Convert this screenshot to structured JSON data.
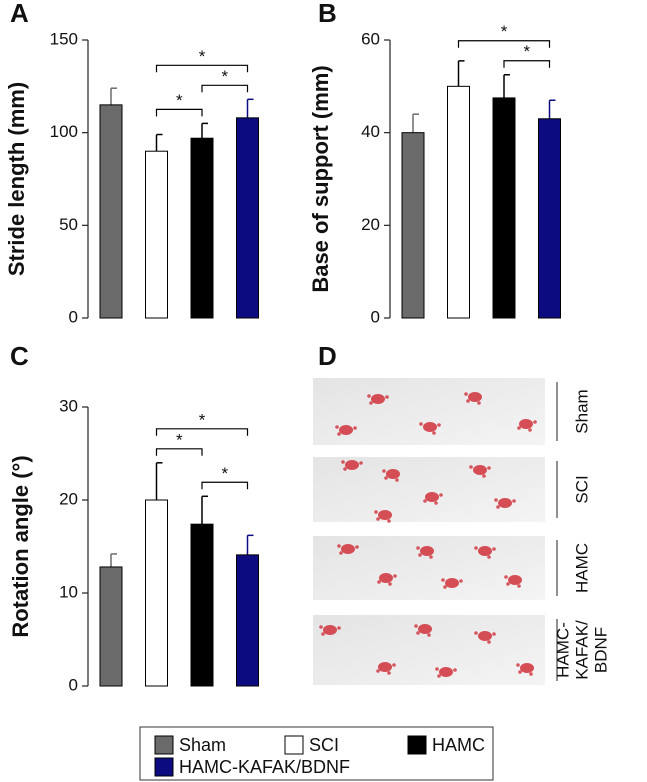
{
  "legend": [
    {
      "name": "Sham",
      "color": "#6b6b6b"
    },
    {
      "name": "SCI",
      "color": "#ffffff"
    },
    {
      "name": "HAMC",
      "color": "#000000"
    },
    {
      "name": "HAMC-KAFAK/BDNF",
      "color": "#0c0c80"
    }
  ],
  "chart_data": [
    {
      "type": "bar",
      "panel": "A",
      "ylabel": "Stride length (mm)",
      "values": [
        115,
        90,
        97,
        108
      ],
      "errors": [
        9,
        9,
        8,
        10
      ],
      "ylim": [
        0,
        150
      ],
      "yticks": [
        0,
        50,
        100,
        150
      ],
      "significance": [
        {
          "bars": [
            1,
            2
          ],
          "label": "*"
        },
        {
          "bars": [
            2,
            3
          ],
          "label": "*"
        },
        {
          "bars": [
            1,
            3
          ],
          "label": "*"
        }
      ]
    },
    {
      "type": "bar",
      "panel": "B",
      "ylabel": "Base of support (mm)",
      "values": [
        40,
        50,
        47.5,
        43
      ],
      "errors": [
        4,
        5.5,
        5,
        4
      ],
      "ylim": [
        0,
        60
      ],
      "yticks": [
        0,
        20,
        40,
        60
      ],
      "significance": [
        {
          "bars": [
            2,
            3
          ],
          "label": "*"
        },
        {
          "bars": [
            1,
            3
          ],
          "label": "*"
        }
      ]
    },
    {
      "type": "bar",
      "panel": "C",
      "ylabel": "Rotation angle (°)",
      "values": [
        12.8,
        20,
        17.4,
        14.1
      ],
      "errors": [
        1.4,
        4,
        3,
        2.1
      ],
      "ylim": [
        0,
        30
      ],
      "yticks": [
        0,
        10,
        20,
        30
      ],
      "significance": [
        {
          "bars": [
            1,
            2
          ],
          "label": "*"
        },
        {
          "bars": [
            2,
            3
          ],
          "label": "*"
        },
        {
          "bars": [
            1,
            3
          ],
          "label": "*"
        }
      ]
    }
  ],
  "footprints": {
    "panel": "D",
    "rows": [
      [
        "Sham"
      ],
      [
        "SCI"
      ],
      [
        "HAMC"
      ],
      [
        "HAMC-",
        "KAFAK/",
        "BDNF"
      ]
    ]
  }
}
